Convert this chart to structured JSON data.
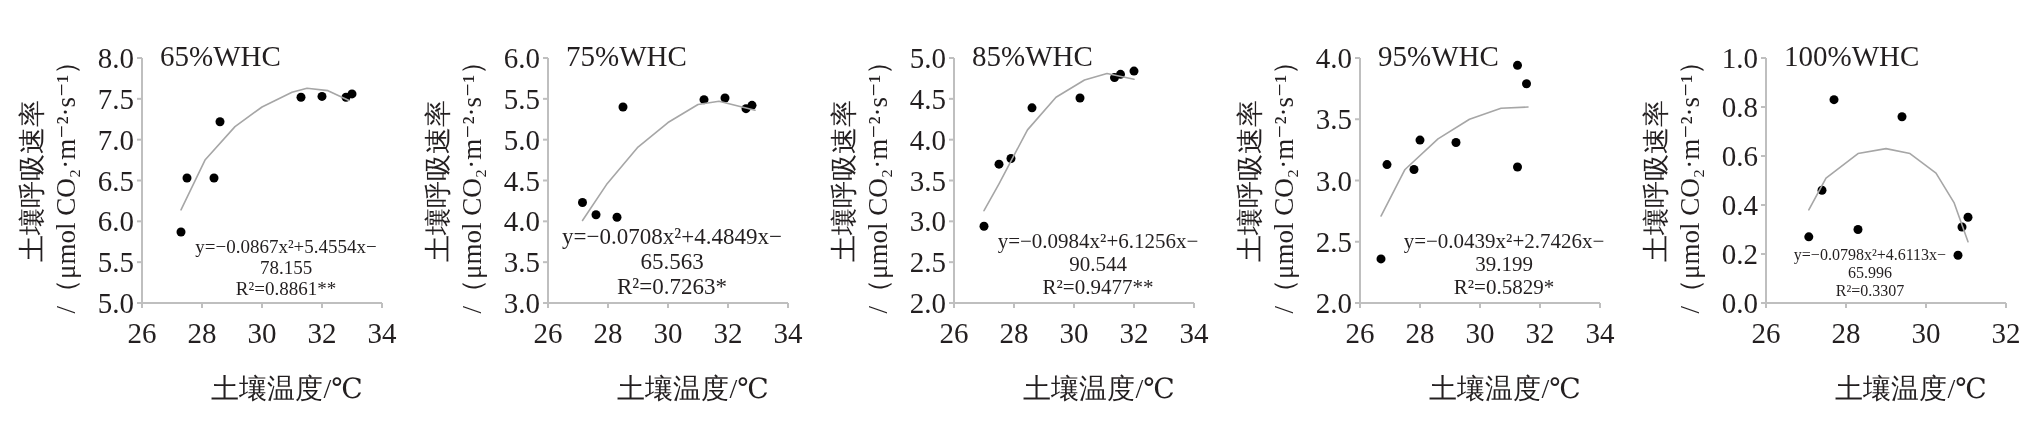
{
  "chart_data": [
    {
      "type": "scatter",
      "title": "65%WHC",
      "xlabel": "土壤温度/℃",
      "ylabel": "土壤呼吸速率/（μmol CO₂·m⁻²·s⁻¹）",
      "xlim": [
        26,
        34
      ],
      "xticks": [
        26,
        28,
        30,
        32,
        34
      ],
      "ylim": [
        5,
        8
      ],
      "yticks": [
        {
          "value": 5,
          "label": "5.0"
        },
        {
          "value": 5.5,
          "label": "5.5"
        },
        {
          "value": 6,
          "label": "6.0"
        },
        {
          "value": 6.5,
          "label": "6.5"
        },
        {
          "value": 7,
          "label": "7.0"
        },
        {
          "value": 7.5,
          "label": "7.5"
        },
        {
          "value": 8,
          "label": "8.0"
        }
      ],
      "series": [
        {
          "type": "scatter",
          "color": "#000000",
          "x": [
            27.3,
            27.5,
            28.4,
            28.6,
            31.3,
            32.0,
            32.8,
            33.0
          ],
          "values": [
            5.87,
            6.53,
            6.53,
            7.22,
            7.52,
            7.53,
            7.52,
            7.56
          ]
        },
        {
          "type": "line",
          "color": "#a6a6a6",
          "x": [
            27.3,
            28.1,
            29.1,
            30.0,
            31.0,
            31.5,
            32.2,
            32.9
          ],
          "values": [
            6.14,
            6.75,
            7.16,
            7.4,
            7.58,
            7.63,
            7.6,
            7.48
          ]
        }
      ],
      "annotations": [
        "y=−0.0867x²+5.4554x−",
        "78.155",
        "R²=0.8861**"
      ]
    },
    {
      "type": "scatter",
      "title": "75%WHC",
      "xlabel": "土壤温度/℃",
      "ylabel": "土壤呼吸速率/（μmol CO₂·m⁻²·s⁻¹）",
      "xlim": [
        26,
        34
      ],
      "xticks": [
        26,
        28,
        30,
        32,
        34
      ],
      "ylim": [
        3,
        6
      ],
      "yticks": [
        {
          "value": 3,
          "label": "3.0"
        },
        {
          "value": 3.5,
          "label": "3.5"
        },
        {
          "value": 4,
          "label": "4.0"
        },
        {
          "value": 4.5,
          "label": "4.5"
        },
        {
          "value": 5,
          "label": "5.0"
        },
        {
          "value": 5.5,
          "label": "5.5"
        },
        {
          "value": 6,
          "label": "6.0"
        }
      ],
      "series": [
        {
          "type": "scatter",
          "color": "#000000",
          "x": [
            27.15,
            27.6,
            28.3,
            28.5,
            31.2,
            31.9,
            32.6,
            32.8
          ],
          "values": [
            4.23,
            4.08,
            4.05,
            5.4,
            5.49,
            5.51,
            5.38,
            5.42
          ]
        },
        {
          "type": "line",
          "color": "#a6a6a6",
          "x": [
            27.15,
            27.95,
            29.0,
            30.0,
            31.0,
            31.7,
            32.9
          ],
          "values": [
            4.01,
            4.45,
            4.91,
            5.21,
            5.43,
            5.47,
            5.36
          ]
        }
      ],
      "annotations": [
        "y=−0.0708x²+4.4849x−",
        "65.563",
        "R²=0.7263*"
      ]
    },
    {
      "type": "scatter",
      "title": "85%WHC",
      "xlabel": "土壤温度/℃",
      "ylabel": "土壤呼吸速率/（μmol CO₂·m⁻²·s⁻¹）",
      "xlim": [
        26,
        34
      ],
      "xticks": [
        26,
        28,
        30,
        32,
        34
      ],
      "ylim": [
        2,
        5
      ],
      "yticks": [
        {
          "value": 2,
          "label": "2.0"
        },
        {
          "value": 2.5,
          "label": "2.5"
        },
        {
          "value": 3,
          "label": "3.0"
        },
        {
          "value": 3.5,
          "label": "3.5"
        },
        {
          "value": 4,
          "label": "4.0"
        },
        {
          "value": 4.5,
          "label": "4.5"
        },
        {
          "value": 5,
          "label": "5.0"
        }
      ],
      "series": [
        {
          "type": "scatter",
          "color": "#000000",
          "x": [
            27.0,
            27.5,
            27.9,
            28.6,
            30.2,
            31.35,
            31.55,
            32.0
          ],
          "values": [
            2.94,
            3.7,
            3.77,
            4.39,
            4.51,
            4.76,
            4.8,
            4.84
          ]
        },
        {
          "type": "line",
          "color": "#a6a6a6",
          "x": [
            27.0,
            27.5,
            28.45,
            29.4,
            30.35,
            31.1,
            32.0
          ],
          "values": [
            3.13,
            3.46,
            4.12,
            4.52,
            4.73,
            4.81,
            4.74
          ]
        }
      ],
      "annotations": [
        "y=−0.0984x²+6.1256x−",
        "90.544",
        "R²=0.9477**"
      ]
    },
    {
      "type": "scatter",
      "title": "95%WHC",
      "xlabel": "土壤温度/℃",
      "ylabel": "土壤呼吸速率/（μmol CO₂·m⁻²·s⁻¹）",
      "xlim": [
        26,
        34
      ],
      "xticks": [
        26,
        28,
        30,
        32,
        34
      ],
      "ylim": [
        2,
        4
      ],
      "yticks": [
        {
          "value": 2,
          "label": "2.0"
        },
        {
          "value": 2.5,
          "label": "2.5"
        },
        {
          "value": 3,
          "label": "3.0"
        },
        {
          "value": 3.5,
          "label": "3.5"
        },
        {
          "value": 4,
          "label": "4.0"
        }
      ],
      "series": [
        {
          "type": "scatter",
          "color": "#000000",
          "x": [
            26.7,
            26.9,
            27.8,
            28.0,
            29.2,
            31.25,
            31.25,
            31.55
          ],
          "values": [
            2.36,
            3.13,
            3.09,
            3.33,
            3.31,
            3.11,
            3.94,
            3.79
          ]
        },
        {
          "type": "line",
          "color": "#a6a6a6",
          "x": [
            26.7,
            27.5,
            28.6,
            29.65,
            30.7,
            31.6
          ],
          "values": [
            2.71,
            3.09,
            3.34,
            3.5,
            3.59,
            3.6
          ]
        }
      ],
      "annotations": [
        "y=−0.0439x²+2.7426x−",
        "39.199",
        "R²=0.5829*"
      ]
    },
    {
      "type": "scatter",
      "title": "100%WHC",
      "xlabel": "土壤温度/℃",
      "ylabel": "土壤呼吸速率/（μmol CO₂·m⁻²·s⁻¹）",
      "xlim": [
        26,
        32
      ],
      "xticks": [
        26,
        28,
        30,
        32
      ],
      "ylim": [
        0,
        1
      ],
      "yticks": [
        {
          "value": 0,
          "label": "0.0"
        },
        {
          "value": 0.2,
          "label": "0.2"
        },
        {
          "value": 0.4,
          "label": "0.4"
        },
        {
          "value": 0.6,
          "label": "0.6"
        },
        {
          "value": 0.8,
          "label": "0.8"
        },
        {
          "value": 1,
          "label": "1.0"
        }
      ],
      "series": [
        {
          "type": "scatter",
          "color": "#000000",
          "x": [
            27.07,
            27.4,
            27.7,
            28.3,
            29.4,
            30.8,
            30.9,
            31.05
          ],
          "values": [
            0.27,
            0.46,
            0.83,
            0.3,
            0.76,
            0.195,
            0.31,
            0.35
          ]
        },
        {
          "type": "line",
          "color": "#a6a6a6",
          "x": [
            27.07,
            27.5,
            28.3,
            29.0,
            29.6,
            30.25,
            30.7,
            31.05
          ],
          "values": [
            0.38,
            0.51,
            0.61,
            0.63,
            0.61,
            0.53,
            0.41,
            0.25
          ]
        }
      ],
      "annotations": [
        "y=−0.0798x²+4.6113x−",
        "65.996",
        "R²=0.3307"
      ]
    }
  ]
}
